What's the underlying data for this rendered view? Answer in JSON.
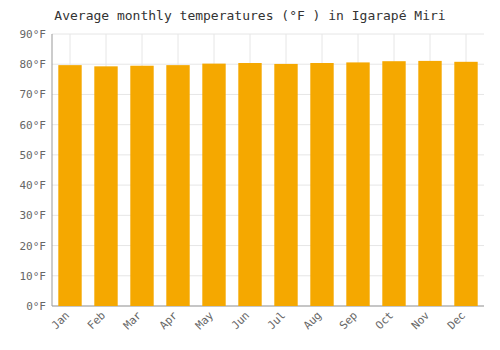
{
  "chart_data": {
    "type": "bar",
    "title": "Average monthly temperatures (°F ) in Igarapé Miri",
    "categories": [
      "Jan",
      "Feb",
      "Mar",
      "Apr",
      "May",
      "Jun",
      "Jul",
      "Aug",
      "Sep",
      "Oct",
      "Nov",
      "Dec"
    ],
    "values": [
      79.7,
      79.3,
      79.5,
      79.7,
      80.2,
      80.4,
      80.1,
      80.4,
      80.6,
      81.0,
      81.1,
      80.8
    ],
    "color": "#F5A800",
    "ylim": [
      0,
      90
    ],
    "yticks": [
      {
        "value": 0,
        "label": "0°F"
      },
      {
        "value": 10,
        "label": "10°F"
      },
      {
        "value": 20,
        "label": "20°F"
      },
      {
        "value": 30,
        "label": "30°F"
      },
      {
        "value": 40,
        "label": "40°F"
      },
      {
        "value": 50,
        "label": "50°F"
      },
      {
        "value": 60,
        "label": "60°F"
      },
      {
        "value": 70,
        "label": "70°F"
      },
      {
        "value": 80,
        "label": "80°F"
      },
      {
        "value": 90,
        "label": "90°F"
      }
    ],
    "grid": true
  }
}
